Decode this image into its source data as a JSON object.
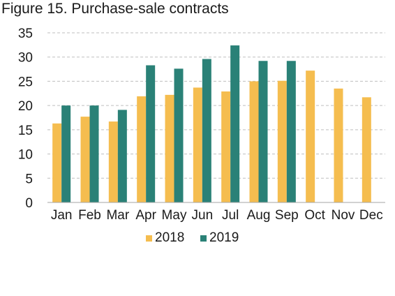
{
  "chart_data": {
    "type": "bar",
    "title": "Figure 15. Purchase-sale contracts",
    "xlabel": "",
    "ylabel": "",
    "categories": [
      "Jan",
      "Feb",
      "Mar",
      "Apr",
      "May",
      "Jun",
      "Jul",
      "Aug",
      "Sep",
      "Oct",
      "Nov",
      "Dec"
    ],
    "series": [
      {
        "name": "2018",
        "color": "#F5BD4F",
        "values": [
          16.3,
          17.7,
          16.7,
          21.9,
          22.2,
          23.7,
          22.9,
          25.0,
          25.1,
          27.2,
          23.5,
          21.7
        ]
      },
      {
        "name": "2019",
        "color": "#2A8177",
        "values": [
          20.0,
          20.0,
          19.1,
          28.3,
          27.6,
          29.6,
          32.4,
          29.2,
          29.2,
          null,
          null,
          null
        ]
      }
    ],
    "ylim": [
      0,
      35
    ],
    "yticks": [
      "0",
      "5",
      "10",
      "15",
      "20",
      "25",
      "30",
      "35"
    ],
    "grid": "horizontal-dashed",
    "legend_position": "bottom"
  }
}
